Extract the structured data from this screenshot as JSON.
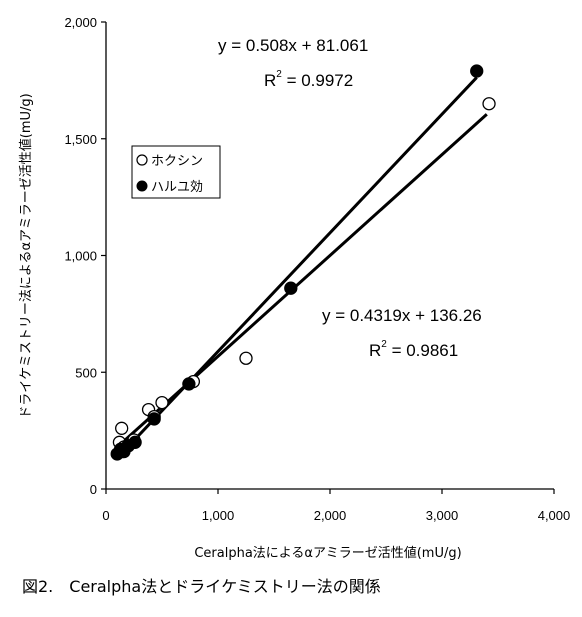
{
  "chart_data": {
    "type": "scatter",
    "xlabel": "Ceralpha法によるαアミラーゼ活性値(mU/g)",
    "ylabel": "ドライケミストリー法によるαアミラーゼ活性値(mU/g)",
    "xlim": [
      0,
      4000
    ],
    "ylim": [
      0,
      2000
    ],
    "x_ticks": [
      "0",
      "1,000",
      "2,000",
      "3,000",
      "4,000"
    ],
    "y_ticks": [
      "0",
      "500",
      "1,000",
      "1,500",
      "2,000"
    ],
    "x_tick_values": [
      0,
      1000,
      2000,
      3000,
      4000
    ],
    "y_tick_values": [
      0,
      500,
      1000,
      1500,
      2000
    ],
    "legend_placement": "upper-left",
    "series": [
      {
        "name": "ホクシン",
        "marker": "open-circle",
        "points": [
          {
            "x": 120,
            "y": 200
          },
          {
            "x": 140,
            "y": 260
          },
          {
            "x": 160,
            "y": 180
          },
          {
            "x": 200,
            "y": 190
          },
          {
            "x": 250,
            "y": 210
          },
          {
            "x": 380,
            "y": 340
          },
          {
            "x": 430,
            "y": 310
          },
          {
            "x": 500,
            "y": 370
          },
          {
            "x": 780,
            "y": 460
          },
          {
            "x": 1250,
            "y": 560
          },
          {
            "x": 3420,
            "y": 1650
          }
        ],
        "trend": {
          "slope": 0.4319,
          "intercept": 136.26,
          "x_range": [
            100,
            3400
          ]
        },
        "equation": "y = 0.4319x + 136.26",
        "r2_label": "R",
        "r2_sup": "2",
        "r2_value": " = 0.9861"
      },
      {
        "name": "ハルユ効",
        "marker": "filled-circle",
        "points": [
          {
            "x": 100,
            "y": 150
          },
          {
            "x": 130,
            "y": 170
          },
          {
            "x": 160,
            "y": 160
          },
          {
            "x": 200,
            "y": 185
          },
          {
            "x": 260,
            "y": 200
          },
          {
            "x": 430,
            "y": 300
          },
          {
            "x": 740,
            "y": 450
          },
          {
            "x": 1650,
            "y": 860
          },
          {
            "x": 3310,
            "y": 1790
          }
        ],
        "trend": {
          "slope": 0.508,
          "intercept": 81.061,
          "x_range": [
            100,
            3310
          ]
        },
        "equation": "y = 0.508x + 81.061",
        "r2_label": "R",
        "r2_sup": "2",
        "r2_value": " = 0.9972"
      }
    ]
  },
  "caption": "図2.　Ceralpha法とドライケミストリー法の関係"
}
